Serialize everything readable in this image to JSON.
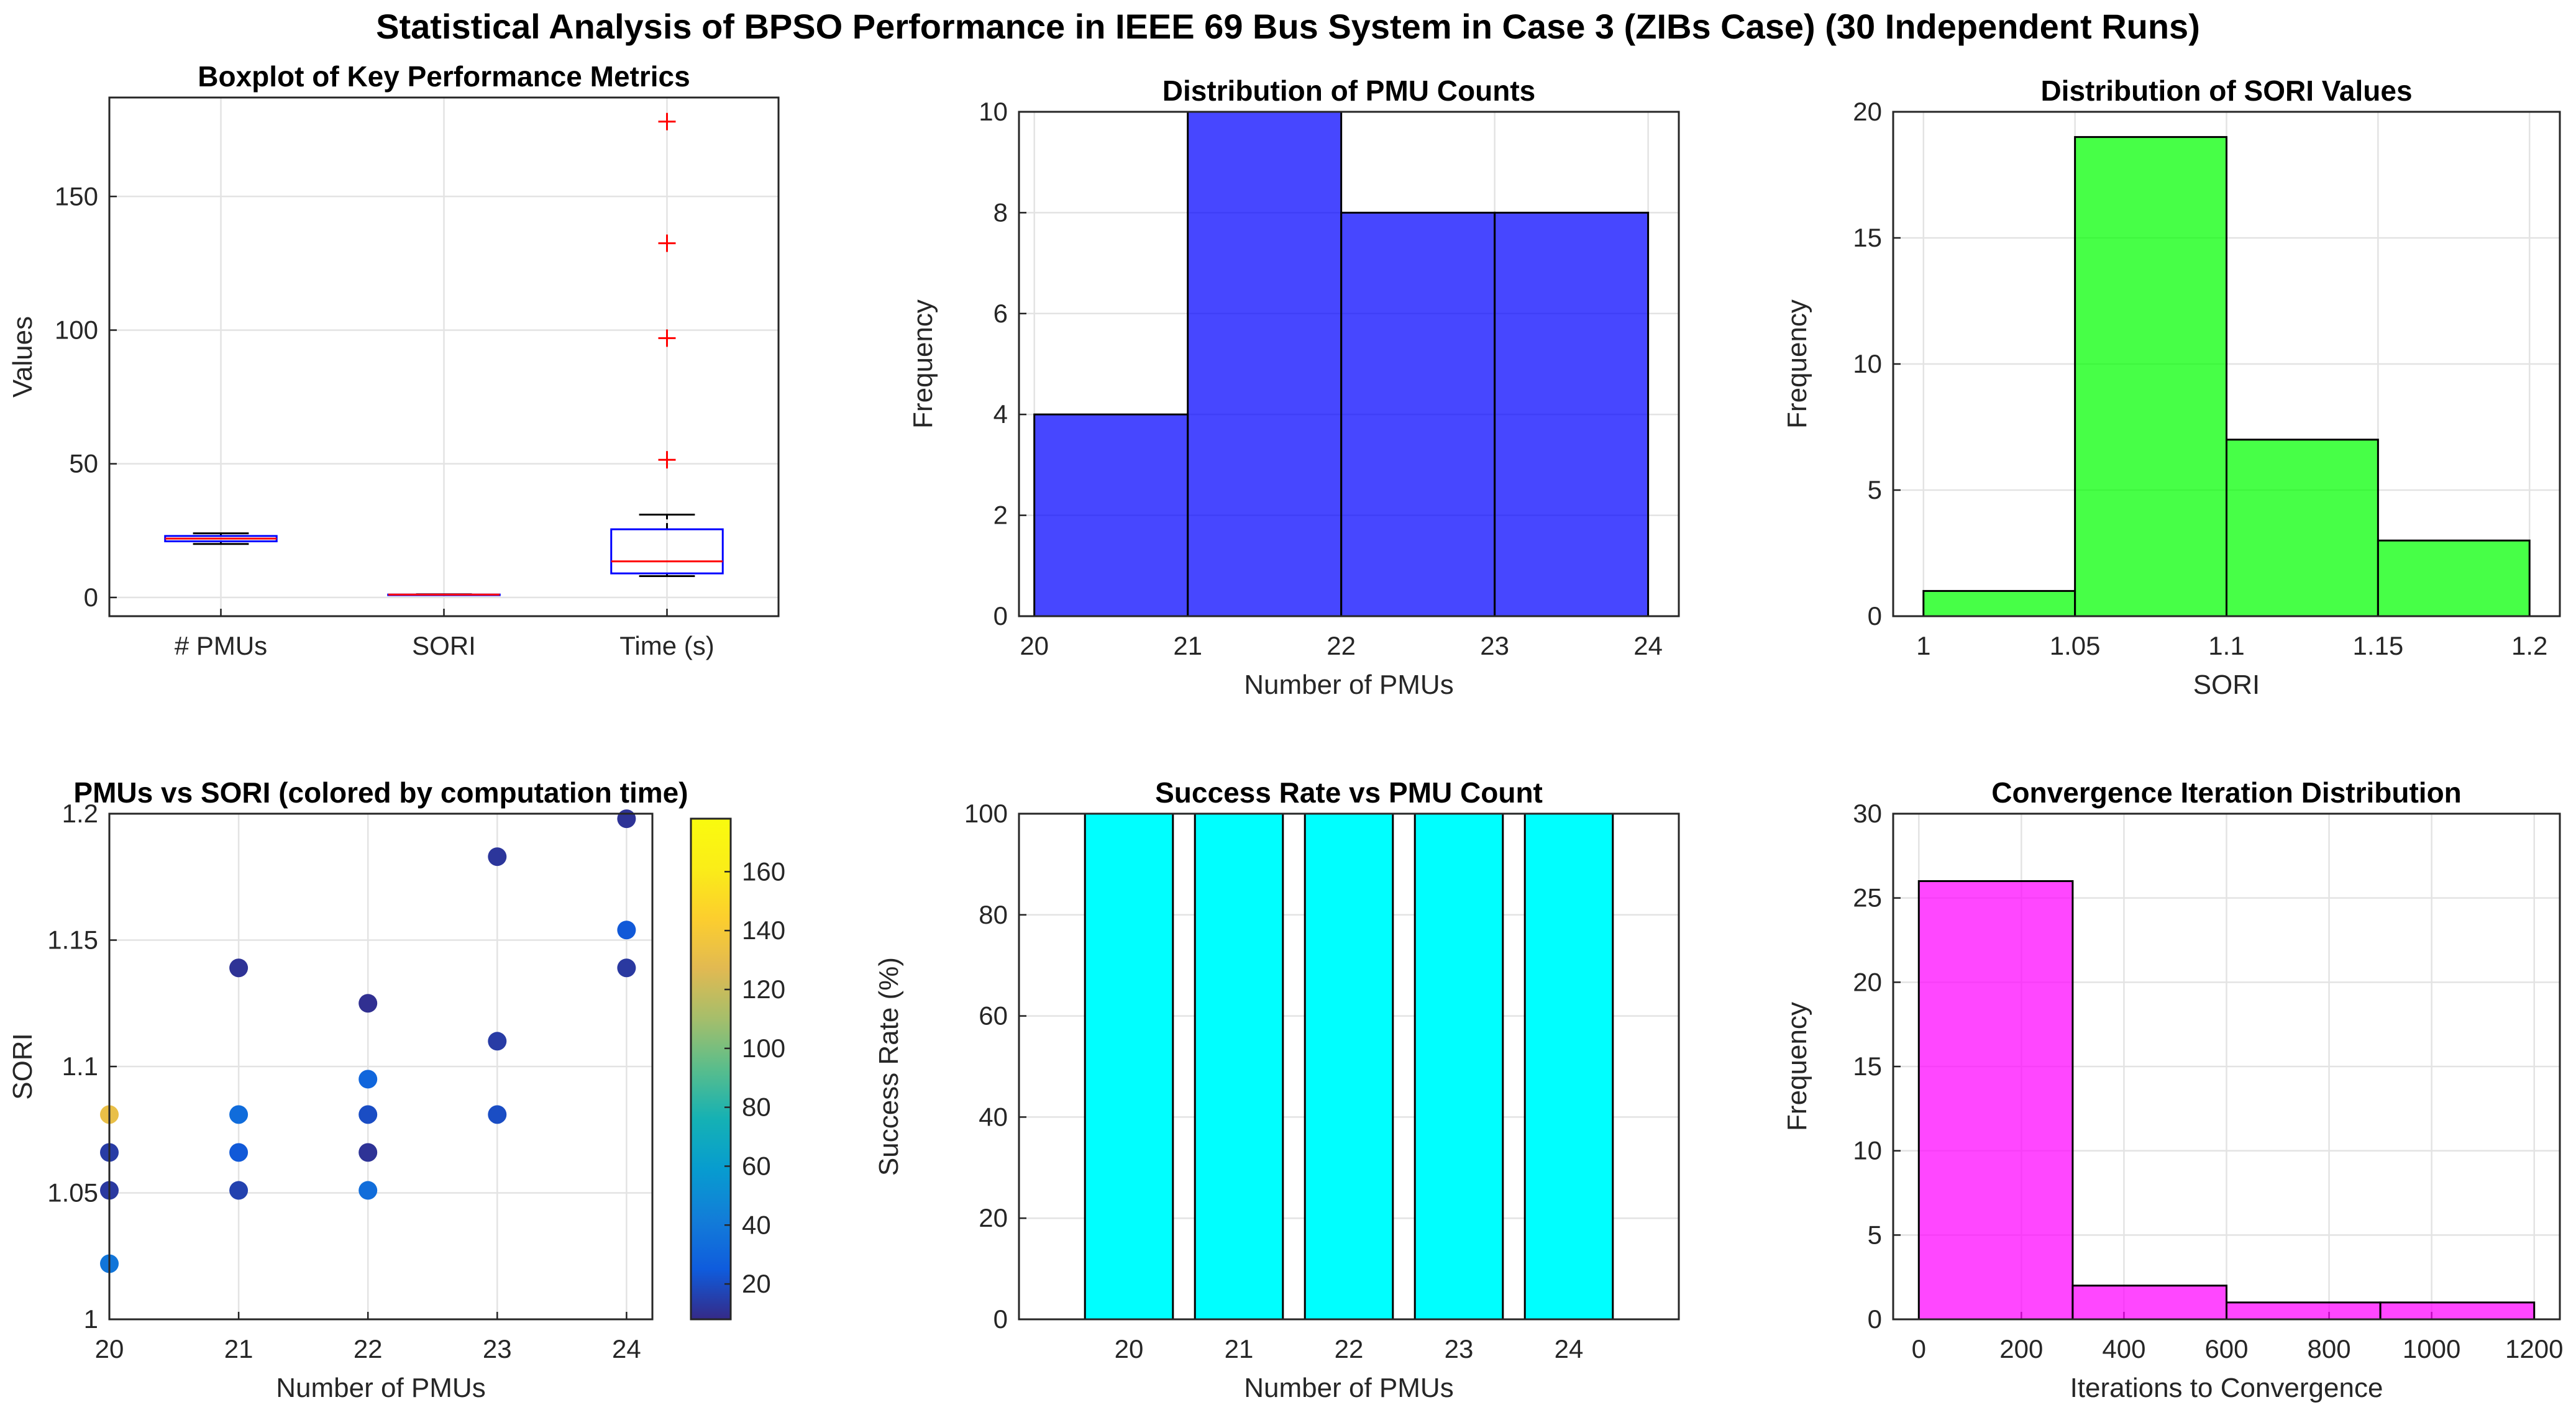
{
  "figure_title": "Statistical Analysis of BPSO Performance in IEEE 69 Bus System in Case 3 (ZIBs Case) (30 Independent Runs)",
  "chart_data": [
    {
      "id": "boxplot",
      "type": "boxplot",
      "title": "Boxplot of Key Performance Metrics",
      "xlabel": "",
      "ylabel": "Values",
      "ylim": [
        -7,
        187
      ],
      "yticks": [
        0,
        50,
        100,
        150
      ],
      "categories": [
        "# PMUs",
        "SORI",
        "Time (s)"
      ],
      "boxes": [
        {
          "whisker_low": 20,
          "q1": 21,
          "median": 22,
          "q3": 23,
          "whisker_high": 24,
          "outliers": []
        },
        {
          "whisker_low": 1.0,
          "q1": 1.05,
          "median": 1.08,
          "q3": 1.1,
          "whisker_high": 1.2,
          "outliers": []
        },
        {
          "whisker_low": 8,
          "q1": 9,
          "median": 13.5,
          "q3": 25.5,
          "whisker_high": 31,
          "outliers": [
            51.5,
            97,
            132.5,
            178
          ]
        }
      ]
    },
    {
      "id": "pmu_hist",
      "type": "bar",
      "title": "Distribution of PMU Counts",
      "xlabel": "Number of PMUs",
      "ylabel": "Frequency",
      "bin_edges": [
        20,
        21,
        22,
        23,
        24
      ],
      "values": [
        4,
        10,
        8,
        8
      ],
      "xlim": [
        19.9,
        24.2
      ],
      "xticks": [
        20,
        21,
        22,
        23,
        24
      ],
      "ylim": [
        0,
        10
      ],
      "yticks": [
        0,
        2,
        4,
        6,
        8,
        10
      ],
      "color": "#0000ff"
    },
    {
      "id": "sori_hist",
      "type": "bar",
      "title": "Distribution of SORI Values",
      "xlabel": "SORI",
      "ylabel": "Frequency",
      "bin_edges": [
        1.0,
        1.05,
        1.1,
        1.15,
        1.2
      ],
      "values": [
        1,
        19,
        7,
        3
      ],
      "xlim": [
        0.99,
        1.21
      ],
      "xticks": [
        1,
        1.05,
        1.1,
        1.15,
        1.2
      ],
      "xtick_labels": [
        "1",
        "1.05",
        "1.1",
        "1.15",
        "1.2"
      ],
      "ylim": [
        0,
        20
      ],
      "yticks": [
        0,
        5,
        10,
        15,
        20
      ],
      "color": "#00ff00"
    },
    {
      "id": "scatter",
      "type": "scatter",
      "title": "PMUs vs SORI (colored by computation time)",
      "xlabel": "Number of PMUs",
      "ylabel": "SORI",
      "xlim": [
        20,
        24.2
      ],
      "xticks": [
        20,
        21,
        22,
        23,
        24
      ],
      "ylim": [
        1,
        1.2
      ],
      "yticks": [
        1,
        1.05,
        1.1,
        1.15,
        1.2
      ],
      "ytick_labels": [
        "1",
        "1.05",
        "1.1",
        "1.15",
        "1.2"
      ],
      "colorbar": {
        "clim": [
          8,
          178
        ],
        "ticks": [
          20,
          40,
          60,
          80,
          100,
          120,
          140,
          160
        ]
      },
      "points": [
        {
          "x": 20,
          "y": 1.081,
          "c": 132
        },
        {
          "x": 20,
          "y": 1.066,
          "c": 14
        },
        {
          "x": 20,
          "y": 1.051,
          "c": 13
        },
        {
          "x": 20,
          "y": 1.022,
          "c": 38
        },
        {
          "x": 21,
          "y": 1.139,
          "c": 11
        },
        {
          "x": 21,
          "y": 1.081,
          "c": 33
        },
        {
          "x": 21,
          "y": 1.066,
          "c": 24
        },
        {
          "x": 21,
          "y": 1.051,
          "c": 16
        },
        {
          "x": 22,
          "y": 1.125,
          "c": 10
        },
        {
          "x": 22,
          "y": 1.095,
          "c": 30
        },
        {
          "x": 22,
          "y": 1.081,
          "c": 20
        },
        {
          "x": 22,
          "y": 1.066,
          "c": 11
        },
        {
          "x": 22,
          "y": 1.051,
          "c": 34
        },
        {
          "x": 23,
          "y": 1.183,
          "c": 12
        },
        {
          "x": 23,
          "y": 1.11,
          "c": 14
        },
        {
          "x": 23,
          "y": 1.081,
          "c": 20
        },
        {
          "x": 24,
          "y": 1.198,
          "c": 11
        },
        {
          "x": 24,
          "y": 1.154,
          "c": 24
        },
        {
          "x": 24,
          "y": 1.139,
          "c": 13
        }
      ]
    },
    {
      "id": "success",
      "type": "bar",
      "title": "Success Rate vs PMU Count",
      "xlabel": "Number of PMUs",
      "ylabel": "Success Rate (%)",
      "categories": [
        "20",
        "21",
        "22",
        "23",
        "24"
      ],
      "cat_x": [
        20,
        21,
        22,
        23,
        24
      ],
      "values": [
        100,
        100,
        100,
        100,
        100
      ],
      "xlim": [
        19,
        25
      ],
      "ylim": [
        0,
        100
      ],
      "yticks": [
        0,
        20,
        40,
        60,
        80,
        100
      ],
      "color": "#00ffff"
    },
    {
      "id": "conv_hist",
      "type": "bar",
      "title": "Convergence Iteration Distribution",
      "xlabel": "Iterations to Convergence",
      "ylabel": "Frequency",
      "bin_edges": [
        0,
        300,
        600,
        900,
        1200
      ],
      "values": [
        26,
        2,
        1,
        1
      ],
      "xlim": [
        -50,
        1250
      ],
      "xticks": [
        0,
        200,
        400,
        600,
        800,
        1000,
        1200
      ],
      "ylim": [
        0,
        30
      ],
      "yticks": [
        0,
        5,
        10,
        15,
        20,
        25,
        30
      ],
      "color": "#ff00ff"
    }
  ]
}
